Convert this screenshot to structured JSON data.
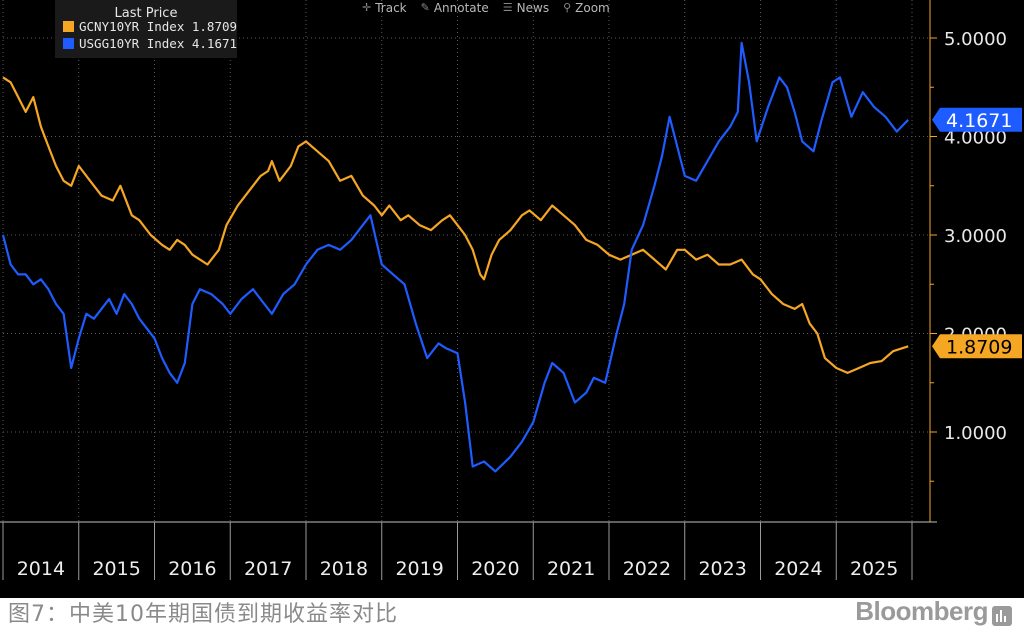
{
  "toolbar": {
    "track": "Track",
    "annotate": "Annotate",
    "news": "News",
    "zoom": "Zoom"
  },
  "legend": {
    "title": "Last Price",
    "items": [
      {
        "label": "GCNY10YR Index  1.8709",
        "color": "#f5a623"
      },
      {
        "label": "USGG10YR Index  4.1671",
        "color": "#1f5cff"
      }
    ]
  },
  "caption": "图7：中美10年期国债到期收益率对比",
  "brand": "Bloomberg",
  "chart_data": {
    "type": "line",
    "x_tick_labels": [
      "2014",
      "2015",
      "2016",
      "2017",
      "2018",
      "2019",
      "2020",
      "2021",
      "2022",
      "2023",
      "2024",
      "2025"
    ],
    "y_tick_labels": [
      "5.0000",
      "4.0000",
      "3.0000",
      "2.0000",
      "1.0000"
    ],
    "ylim": [
      0.2,
      5.4
    ],
    "xlim": [
      2014.0,
      2026.0
    ],
    "grid": true,
    "legend_position": "top-left",
    "last_value_labels": [
      "4.1671",
      "1.8709"
    ],
    "series": [
      {
        "name": "GCNY10YR Index",
        "color": "#f5a623",
        "x": [
          2014.0,
          2014.1,
          2014.2,
          2014.3,
          2014.4,
          2014.5,
          2014.6,
          2014.7,
          2014.8,
          2014.9,
          2015.0,
          2015.15,
          2015.3,
          2015.45,
          2015.55,
          2015.7,
          2015.8,
          2015.95,
          2016.1,
          2016.2,
          2016.3,
          2016.4,
          2016.5,
          2016.6,
          2016.7,
          2016.85,
          2016.95,
          2017.1,
          2017.25,
          2017.4,
          2017.5,
          2017.55,
          2017.65,
          2017.8,
          2017.9,
          2018.0,
          2018.15,
          2018.3,
          2018.45,
          2018.6,
          2018.75,
          2018.9,
          2019.0,
          2019.1,
          2019.25,
          2019.35,
          2019.5,
          2019.65,
          2019.8,
          2019.9,
          2020.0,
          2020.1,
          2020.2,
          2020.3,
          2020.35,
          2020.45,
          2020.55,
          2020.7,
          2020.85,
          2020.95,
          2021.1,
          2021.25,
          2021.4,
          2021.55,
          2021.7,
          2021.85,
          2022.0,
          2022.15,
          2022.3,
          2022.45,
          2022.6,
          2022.75,
          2022.9,
          2023.0,
          2023.15,
          2023.3,
          2023.45,
          2023.6,
          2023.75,
          2023.9,
          2024.0,
          2024.15,
          2024.3,
          2024.45,
          2024.55,
          2024.65,
          2024.75,
          2024.85,
          2025.0,
          2025.15,
          2025.3,
          2025.45,
          2025.6,
          2025.75,
          2025.95
        ],
        "values": [
          4.6,
          4.55,
          4.4,
          4.25,
          4.4,
          4.1,
          3.9,
          3.7,
          3.55,
          3.5,
          3.7,
          3.55,
          3.4,
          3.35,
          3.5,
          3.2,
          3.15,
          3.0,
          2.9,
          2.85,
          2.95,
          2.9,
          2.8,
          2.75,
          2.7,
          2.85,
          3.1,
          3.3,
          3.45,
          3.6,
          3.65,
          3.75,
          3.55,
          3.7,
          3.9,
          3.95,
          3.85,
          3.75,
          3.55,
          3.6,
          3.4,
          3.3,
          3.2,
          3.3,
          3.15,
          3.2,
          3.1,
          3.05,
          3.15,
          3.2,
          3.1,
          3.0,
          2.85,
          2.6,
          2.55,
          2.8,
          2.95,
          3.05,
          3.2,
          3.25,
          3.15,
          3.3,
          3.2,
          3.1,
          2.95,
          2.9,
          2.8,
          2.75,
          2.8,
          2.85,
          2.75,
          2.65,
          2.85,
          2.85,
          2.75,
          2.8,
          2.7,
          2.7,
          2.75,
          2.6,
          2.55,
          2.4,
          2.3,
          2.25,
          2.3,
          2.1,
          2.0,
          1.75,
          1.65,
          1.6,
          1.65,
          1.7,
          1.72,
          1.82,
          1.87
        ]
      },
      {
        "name": "USGG10YR Index",
        "color": "#1f5cff",
        "x": [
          2014.0,
          2014.1,
          2014.2,
          2014.3,
          2014.4,
          2014.5,
          2014.6,
          2014.7,
          2014.8,
          2014.9,
          2015.0,
          2015.1,
          2015.2,
          2015.3,
          2015.4,
          2015.5,
          2015.6,
          2015.7,
          2015.8,
          2015.9,
          2016.0,
          2016.1,
          2016.2,
          2016.3,
          2016.4,
          2016.5,
          2016.6,
          2016.75,
          2016.9,
          2017.0,
          2017.15,
          2017.3,
          2017.45,
          2017.55,
          2017.7,
          2017.85,
          2018.0,
          2018.15,
          2018.3,
          2018.45,
          2018.6,
          2018.75,
          2018.85,
          2019.0,
          2019.15,
          2019.3,
          2019.45,
          2019.6,
          2019.75,
          2019.85,
          2020.0,
          2020.1,
          2020.2,
          2020.35,
          2020.5,
          2020.7,
          2020.85,
          2021.0,
          2021.15,
          2021.25,
          2021.4,
          2021.55,
          2021.7,
          2021.8,
          2021.95,
          2022.1,
          2022.2,
          2022.3,
          2022.45,
          2022.6,
          2022.7,
          2022.8,
          2022.9,
          2023.0,
          2023.15,
          2023.3,
          2023.45,
          2023.6,
          2023.7,
          2023.75,
          2023.85,
          2023.95,
          2024.1,
          2024.25,
          2024.35,
          2024.45,
          2024.55,
          2024.7,
          2024.8,
          2024.95,
          2025.05,
          2025.2,
          2025.35,
          2025.5,
          2025.65,
          2025.8,
          2025.95
        ],
        "values": [
          3.0,
          2.7,
          2.6,
          2.6,
          2.5,
          2.55,
          2.45,
          2.3,
          2.2,
          1.65,
          1.95,
          2.2,
          2.15,
          2.25,
          2.35,
          2.2,
          2.4,
          2.3,
          2.15,
          2.05,
          1.95,
          1.75,
          1.6,
          1.5,
          1.7,
          2.3,
          2.45,
          2.4,
          2.3,
          2.2,
          2.35,
          2.45,
          2.3,
          2.2,
          2.4,
          2.5,
          2.7,
          2.85,
          2.9,
          2.85,
          2.95,
          3.1,
          3.2,
          2.7,
          2.6,
          2.5,
          2.1,
          1.75,
          1.9,
          1.85,
          1.8,
          1.3,
          0.65,
          0.7,
          0.6,
          0.75,
          0.9,
          1.1,
          1.5,
          1.7,
          1.6,
          1.3,
          1.4,
          1.55,
          1.5,
          2.0,
          2.3,
          2.85,
          3.1,
          3.5,
          3.8,
          4.2,
          3.9,
          3.6,
          3.55,
          3.75,
          3.95,
          4.1,
          4.25,
          4.95,
          4.55,
          3.95,
          4.3,
          4.6,
          4.5,
          4.25,
          3.95,
          3.85,
          4.15,
          4.55,
          4.6,
          4.2,
          4.45,
          4.3,
          4.2,
          4.05,
          4.17
        ]
      }
    ]
  }
}
